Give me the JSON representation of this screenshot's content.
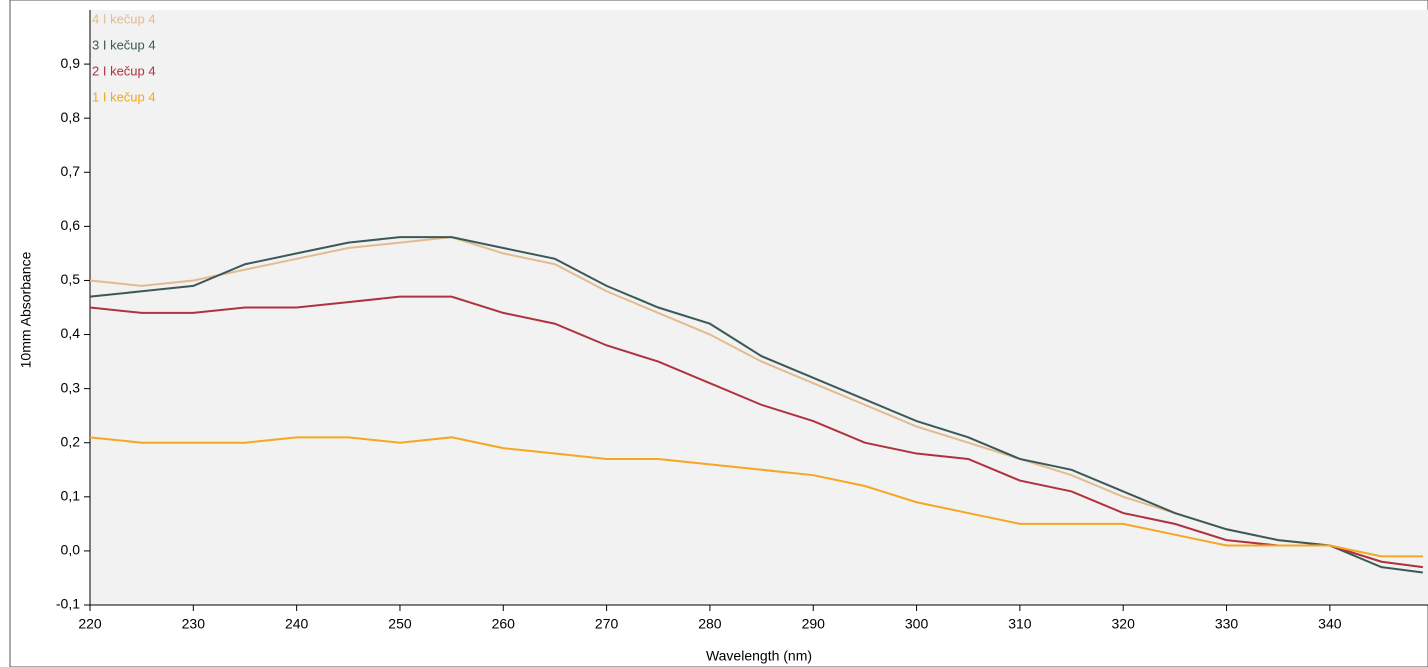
{
  "chart_data": {
    "type": "line",
    "x_label": "Wavelength (nm)",
    "y_label": "10mm Absorbance",
    "x": [
      220,
      225,
      230,
      235,
      240,
      245,
      250,
      255,
      260,
      265,
      270,
      275,
      280,
      285,
      290,
      295,
      300,
      305,
      310,
      315,
      320,
      325,
      330,
      335,
      340,
      345,
      349
    ],
    "series": [
      {
        "name": "4 I kečup 4",
        "color": "#e2bc8e",
        "values": [
          0.5,
          0.49,
          0.5,
          0.52,
          0.54,
          0.56,
          0.57,
          0.58,
          0.55,
          0.53,
          0.48,
          0.44,
          0.4,
          0.35,
          0.31,
          0.27,
          0.23,
          0.2,
          0.17,
          0.14,
          0.1,
          0.07,
          0.04,
          0.02,
          0.01,
          -0.02,
          -0.03
        ]
      },
      {
        "name": "3 I kečup 4",
        "color": "#3b5959",
        "values": [
          0.47,
          0.48,
          0.49,
          0.53,
          0.55,
          0.57,
          0.58,
          0.58,
          0.56,
          0.54,
          0.49,
          0.45,
          0.42,
          0.36,
          0.32,
          0.28,
          0.24,
          0.21,
          0.17,
          0.15,
          0.11,
          0.07,
          0.04,
          0.02,
          0.01,
          -0.03,
          -0.04
        ]
      },
      {
        "name": "2 I kečup 4",
        "color": "#b0323f",
        "values": [
          0.45,
          0.44,
          0.44,
          0.45,
          0.45,
          0.46,
          0.47,
          0.47,
          0.44,
          0.42,
          0.38,
          0.35,
          0.31,
          0.27,
          0.24,
          0.2,
          0.18,
          0.17,
          0.13,
          0.11,
          0.07,
          0.05,
          0.02,
          0.01,
          0.01,
          -0.02,
          -0.03
        ]
      },
      {
        "name": "1 I kečup 4",
        "color": "#f5a623",
        "values": [
          0.21,
          0.2,
          0.2,
          0.2,
          0.21,
          0.21,
          0.2,
          0.21,
          0.19,
          0.18,
          0.17,
          0.17,
          0.16,
          0.15,
          0.14,
          0.12,
          0.09,
          0.07,
          0.05,
          0.05,
          0.05,
          0.03,
          0.01,
          0.01,
          0.01,
          -0.01,
          -0.01
        ]
      }
    ],
    "xlim": [
      220,
      349.5
    ],
    "xticks": [
      220,
      230,
      240,
      250,
      260,
      270,
      280,
      290,
      300,
      310,
      320,
      330,
      340
    ],
    "ylim": [
      -0.1,
      1.0
    ],
    "yticks": [
      {
        "value": -0.1,
        "label": "-0,1"
      },
      {
        "value": 0.0,
        "label": "0,0"
      },
      {
        "value": 0.1,
        "label": "0,1"
      },
      {
        "value": 0.2,
        "label": "0,2"
      },
      {
        "value": 0.3,
        "label": "0,3"
      },
      {
        "value": 0.4,
        "label": "0,4"
      },
      {
        "value": 0.5,
        "label": "0,5"
      },
      {
        "value": 0.6,
        "label": "0,6"
      },
      {
        "value": 0.7,
        "label": "0,7"
      },
      {
        "value": 0.8,
        "label": "0,8"
      },
      {
        "value": 0.9,
        "label": "0,9"
      }
    ],
    "plot_background": "#f2f2f2",
    "legend": "upper left"
  }
}
